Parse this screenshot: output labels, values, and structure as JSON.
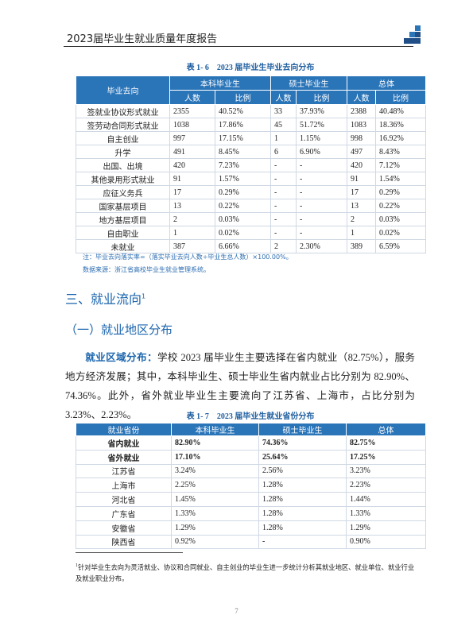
{
  "header": {
    "title": "2023届毕业生就业质量年度报告"
  },
  "table1": {
    "caption": "表 1- 6　2023 届毕业生毕业去向分布",
    "header": [
      "毕业去向",
      "本科毕业生",
      "硕士毕业生",
      "总体"
    ],
    "subheader": [
      "人数",
      "比例",
      "人数",
      "比例",
      "人数",
      "比例"
    ],
    "rows": [
      [
        "签就业协议形式就业",
        "2355",
        "40.52%",
        "33",
        "37.93%",
        "2388",
        "40.48%"
      ],
      [
        "签劳动合同形式就业",
        "1038",
        "17.86%",
        "45",
        "51.72%",
        "1083",
        "18.36%"
      ],
      [
        "自主创业",
        "997",
        "17.15%",
        "1",
        "1.15%",
        "998",
        "16.92%"
      ],
      [
        "升学",
        "491",
        "8.45%",
        "6",
        "6.90%",
        "497",
        "8.43%"
      ],
      [
        "出国、出境",
        "420",
        "7.23%",
        "-",
        "-",
        "420",
        "7.12%"
      ],
      [
        "其他录用形式就业",
        "91",
        "1.57%",
        "-",
        "-",
        "91",
        "1.54%"
      ],
      [
        "应征义务兵",
        "17",
        "0.29%",
        "-",
        "-",
        "17",
        "0.29%"
      ],
      [
        "国家基层项目",
        "13",
        "0.22%",
        "-",
        "-",
        "13",
        "0.22%"
      ],
      [
        "地方基层项目",
        "2",
        "0.03%",
        "-",
        "-",
        "2",
        "0.03%"
      ],
      [
        "自由职业",
        "1",
        "0.02%",
        "-",
        "-",
        "1",
        "0.02%"
      ],
      [
        "未就业",
        "387",
        "6.66%",
        "2",
        "2.30%",
        "389",
        "6.59%"
      ]
    ],
    "notes": [
      "注：毕业去向落实率=（落实毕业去向人数÷毕业生总人数）×100.00%。",
      "数据来源：浙江省高校毕业生就业管理系统。"
    ]
  },
  "section_title": {
    "text": "三、就业流向",
    "footnote_mark": "1"
  },
  "subsection_title": "（一）就业地区分布",
  "paragraph": {
    "lead": "就业区域分布：",
    "text": "学校 2023 届毕业生主要选择在省内就业（82.75%），服务地方经济发展；其中，本科毕业生、硕士毕业生省内就业占比分别为 82.90%、74.36%。此外，省外就业毕业生主要流向了江苏省、上海市，占比分别为 3.23%、2.23%。"
  },
  "table2": {
    "caption": "表 1- 7　2023 届毕业生就业省份分布",
    "header": [
      "就业省份",
      "本科毕业生",
      "硕士毕业生",
      "总体"
    ],
    "bold_rows": [
      0,
      1
    ],
    "rows": [
      [
        "省内就业",
        "82.90%",
        "74.36%",
        "82.75%"
      ],
      [
        "省外就业",
        "17.10%",
        "25.64%",
        "17.25%"
      ],
      [
        "江苏省",
        "3.24%",
        "2.56%",
        "3.23%"
      ],
      [
        "上海市",
        "2.25%",
        "1.28%",
        "2.23%"
      ],
      [
        "河北省",
        "1.45%",
        "1.28%",
        "1.44%"
      ],
      [
        "广东省",
        "1.33%",
        "1.28%",
        "1.33%"
      ],
      [
        "安徽省",
        "1.29%",
        "1.28%",
        "1.29%"
      ],
      [
        "陕西省",
        "0.92%",
        "-",
        "0.90%"
      ]
    ]
  },
  "footnote": {
    "mark": "1",
    "text": "针对毕业生去向为灵活就业、协议和合同就业、自主创业的毕业生进一步统计分析其就业地区、就业单位、就业行业及就业职业分布。"
  },
  "page_number": "7"
}
